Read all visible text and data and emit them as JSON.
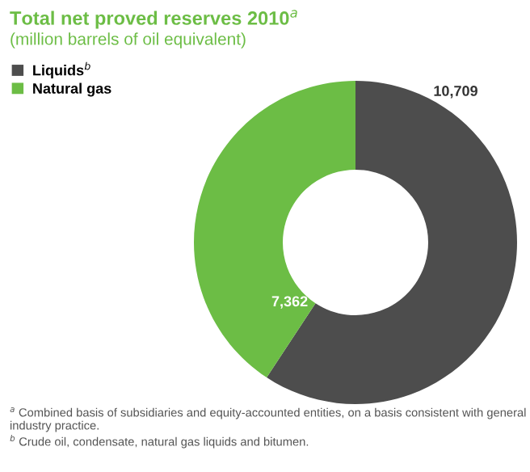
{
  "chart_data": {
    "type": "donut",
    "title": "Total net proved reserves 2010$^{a}$",
    "subtitle": "(million barrels of oil equivalent)",
    "categories": [
      "Liquids$^{b}$",
      "Natural gas"
    ],
    "values": [
      10709,
      7362
    ],
    "colors": [
      "#4d4d4d",
      "#6cbd45"
    ],
    "value_labels": [
      "10,709",
      "7,362"
    ],
    "legend": "top left",
    "annotations": [
      "$^{a}$ Combined basis of subsidiaries and equity-accounted entities, on a basis consistent with general industry practice.",
      "$^{b}$ Crude oil, condensate, natural gas liquids and bitumen."
    ]
  }
}
